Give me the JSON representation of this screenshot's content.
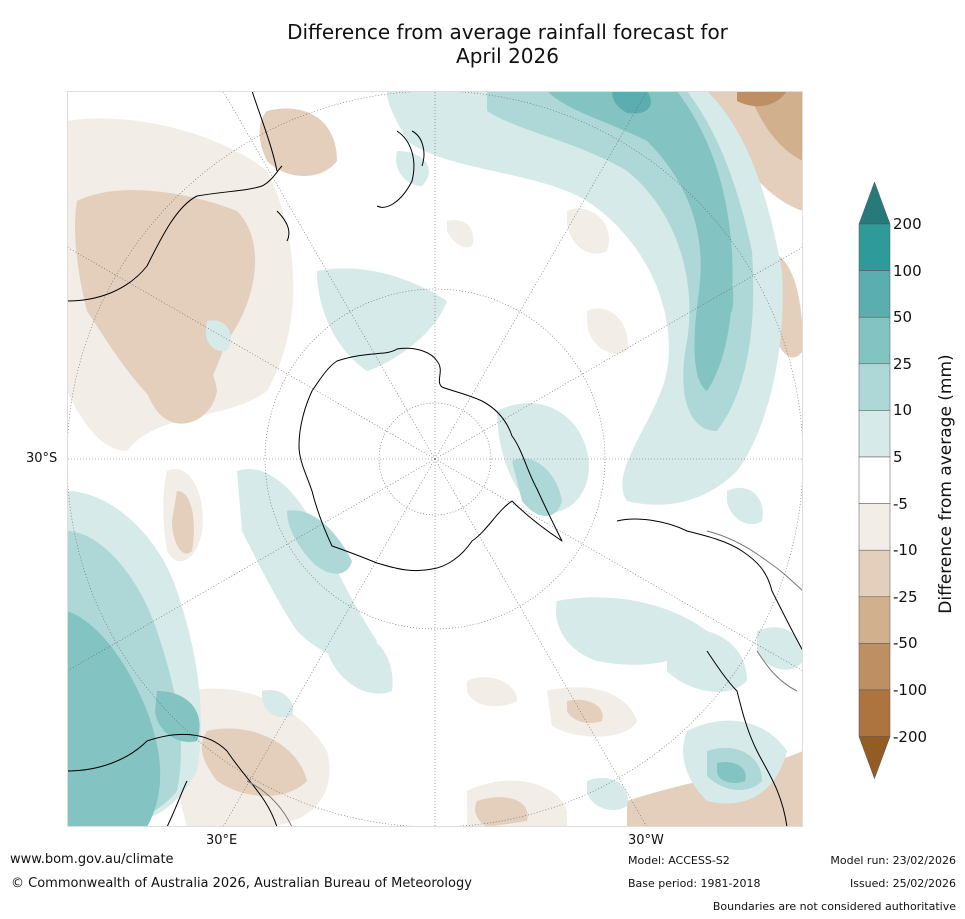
{
  "title": {
    "line1": "Difference from average rainfall forecast for",
    "line2": "April 2026"
  },
  "map": {
    "projection": "south-polar-stereographic",
    "lat_label": "30°S",
    "lon_labels": {
      "east": "30°E",
      "west": "30°W"
    }
  },
  "colorbar": {
    "label": "Difference from average (mm)",
    "ticks": [
      "200",
      "100",
      "50",
      "25",
      "10",
      "5",
      "-5",
      "-10",
      "-25",
      "-50",
      "-100",
      "-200"
    ],
    "colors": {
      "teal_200_over": "#267b7a",
      "teal_100_200": "#2e9b9a",
      "teal_50_100": "#5aaeaf",
      "teal_25_50": "#83c3c2",
      "teal_10_25": "#aed8d7",
      "teal_5_10": "#d6eae9",
      "neutral": "#ffffff",
      "brown_5_10": "#f2ede7",
      "brown_10_25": "#e3cfbc",
      "brown_25_50": "#d1b08e",
      "brown_50_100": "#bd8f63",
      "brown_100_200": "#ae7440",
      "brown_under": "#925c23"
    }
  },
  "footer": {
    "url": "www.bom.gov.au/climate",
    "copyright": "© Commonwealth of Australia 2026, Australian Bureau of Meteorology",
    "model": "Model: ACCESS-S2",
    "base_period": "Base period: 1981-2018",
    "model_run": "Model run: 23/02/2026",
    "issued": "Issued: 25/02/2026",
    "disclaimer": "Boundaries are not considered authoritative"
  }
}
